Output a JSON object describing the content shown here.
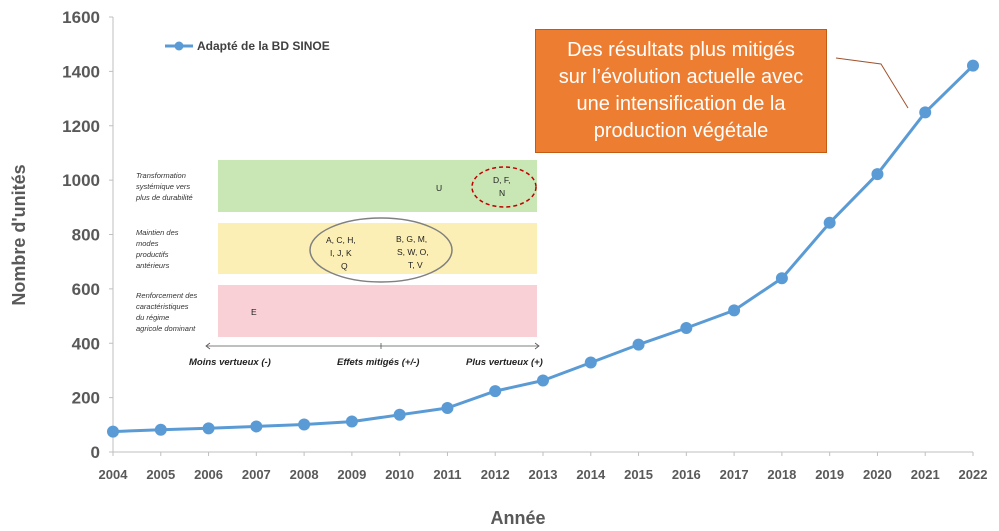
{
  "chart_data": {
    "type": "line",
    "title": "",
    "xlabel": "Année",
    "ylabel": "Nombre d'unités",
    "x": [
      2004,
      2005,
      2006,
      2007,
      2008,
      2009,
      2010,
      2011,
      2012,
      2013,
      2014,
      2015,
      2016,
      2017,
      2018,
      2019,
      2020,
      2021,
      2022
    ],
    "series": [
      {
        "name": "Adapté de la BD SINOE",
        "color": "#5b9bd5",
        "values": [
          75,
          82,
          87,
          94,
          101,
          112,
          137,
          162,
          224,
          263,
          329,
          395,
          456,
          521,
          639,
          843,
          1022,
          1249,
          1421
        ]
      }
    ],
    "ylim": [
      0,
      1600
    ],
    "yticks": [
      0,
      200,
      400,
      600,
      800,
      1000,
      1200,
      1400,
      1600
    ],
    "grid": false,
    "legend_position": "top-left"
  },
  "annotation": {
    "line1": "Des résultats plus mitigés",
    "line2": "sur l’évolution actuelle avec",
    "line3": "une intensification de la",
    "line4": "production végétale"
  },
  "inset": {
    "bands": [
      {
        "label_lines": [
          "Transformation",
          "systémique vers",
          "plus de durabilité"
        ],
        "color": "#c9e6b5",
        "letters": [
          {
            "text": "U"
          },
          {
            "text": "D, F,"
          },
          {
            "text": "N"
          }
        ]
      },
      {
        "label_lines": [
          "Maintien des",
          "modes",
          "productifs",
          "antérieurs"
        ],
        "color": "#fcefb5",
        "letters": [
          {
            "text": "A,  C,  H,"
          },
          {
            "text": "I,   J,  K"
          },
          {
            "text": "Q"
          },
          {
            "text": "B,  G,  M,"
          },
          {
            "text": "S,  W,  O,"
          },
          {
            "text": "T,  V"
          }
        ]
      },
      {
        "label_lines": [
          "Renforcement des",
          "caractéristiques",
          "du régime",
          "agricole dominant"
        ],
        "color": "#f8d0d6",
        "letters": [
          {
            "text": "E"
          }
        ]
      }
    ],
    "scale": {
      "left": "Moins vertueux (-)",
      "middle": "Effets mitigés (+/-)",
      "right": "Plus vertueux (+)"
    }
  }
}
